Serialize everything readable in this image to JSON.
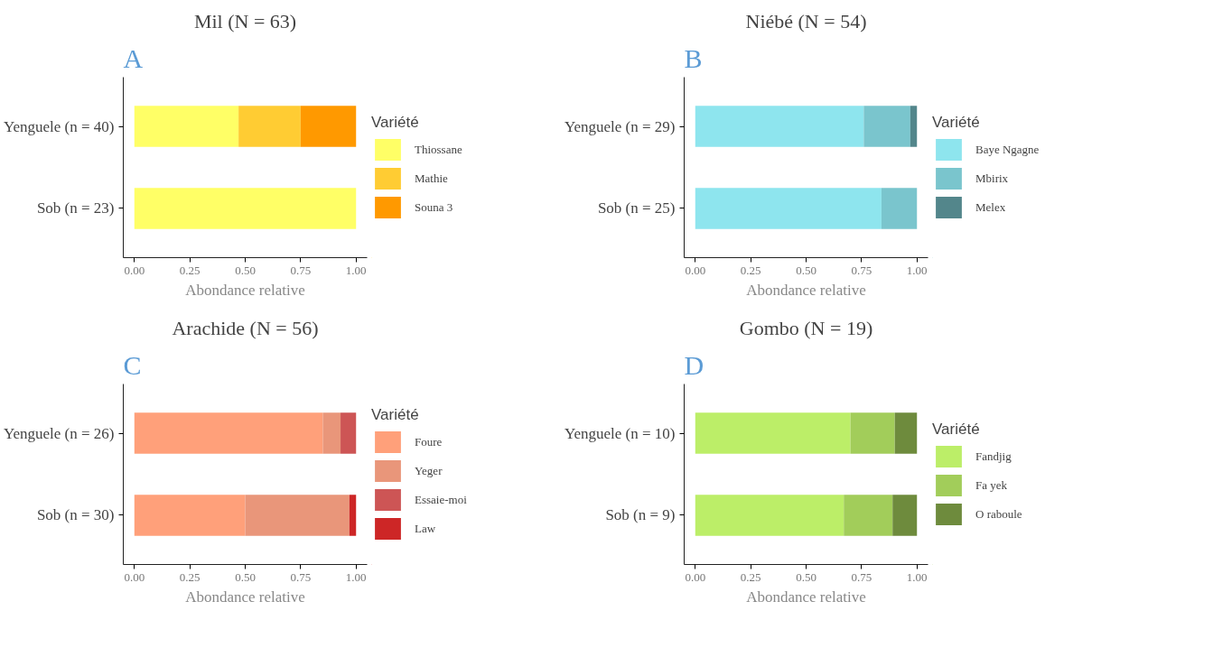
{
  "chart_data": [
    {
      "type": "bar",
      "orientation": "horizontal",
      "stacked": true,
      "title": "Mil (N = 63)",
      "annotations": [
        "A"
      ],
      "xlabel": "Abondance relative",
      "legend_title": "Variété",
      "legend": "right",
      "grid": false,
      "categories": [
        "Yenguele (n = 40)",
        "Sob (n = 23)"
      ],
      "xlim": [
        -0.05,
        1.05
      ],
      "xticks": [
        {
          "value": 0,
          "label": "0.00"
        },
        {
          "value": 0.25,
          "label": "0.25"
        },
        {
          "value": 0.5,
          "label": "0.50"
        },
        {
          "value": 0.75,
          "label": "0.75"
        },
        {
          "value": 1,
          "label": "1.00"
        }
      ],
      "series": [
        {
          "name": "Thiossane",
          "color": "#ffff66",
          "values": [
            0.47,
            1
          ]
        },
        {
          "name": "Mathie",
          "color": "#ffcc33",
          "values": [
            0.28,
            0
          ]
        },
        {
          "name": "Souna 3",
          "color": "#ff9900",
          "values": [
            0.25,
            0
          ]
        }
      ]
    },
    {
      "type": "bar",
      "orientation": "horizontal",
      "stacked": true,
      "title": "Niébé (N = 54)",
      "annotations": [
        "B"
      ],
      "xlabel": "Abondance relative",
      "legend_title": "Variété",
      "legend": "right",
      "grid": false,
      "categories": [
        "Yenguele (n = 29)",
        "Sob (n = 25)"
      ],
      "xlim": [
        -0.05,
        1.05
      ],
      "xticks": [
        {
          "value": 0,
          "label": "0.00"
        },
        {
          "value": 0.25,
          "label": "0.25"
        },
        {
          "value": 0.5,
          "label": "0.50"
        },
        {
          "value": 0.75,
          "label": "0.75"
        },
        {
          "value": 1,
          "label": "1.00"
        }
      ],
      "series": [
        {
          "name": "Baye Ngagne",
          "color": "#8ee5ee",
          "values": [
            0.76,
            0.84
          ]
        },
        {
          "name": "Mbirix",
          "color": "#7ac5cd",
          "values": [
            0.21,
            0.16
          ]
        },
        {
          "name": "Melex",
          "color": "#53868b",
          "values": [
            0.03,
            0
          ]
        }
      ]
    },
    {
      "type": "bar",
      "orientation": "horizontal",
      "stacked": true,
      "title": "Arachide (N = 56)",
      "annotations": [
        "C"
      ],
      "xlabel": "Abondance relative",
      "legend_title": "Variété",
      "legend": "right",
      "grid": false,
      "categories": [
        "Yenguele (n = 26)",
        "Sob (n = 30)"
      ],
      "xlim": [
        -0.05,
        1.05
      ],
      "xticks": [
        {
          "value": 0,
          "label": "0.00"
        },
        {
          "value": 0.25,
          "label": "0.25"
        },
        {
          "value": 0.5,
          "label": "0.50"
        },
        {
          "value": 0.75,
          "label": "0.75"
        },
        {
          "value": 1,
          "label": "1.00"
        }
      ],
      "series": [
        {
          "name": "Foure",
          "color": "#ffa07a",
          "values": [
            0.85,
            0.5
          ]
        },
        {
          "name": "Yeger",
          "color": "#e9967a",
          "values": [
            0.08,
            0.47
          ]
        },
        {
          "name": "Essaie-moi",
          "color": "#cd5555",
          "values": [
            0.07,
            0
          ]
        },
        {
          "name": "Law",
          "color": "#cd2626",
          "values": [
            0,
            0.03
          ]
        }
      ]
    },
    {
      "type": "bar",
      "orientation": "horizontal",
      "stacked": true,
      "title": "Gombo (N = 19)",
      "annotations": [
        "D"
      ],
      "xlabel": "Abondance relative",
      "legend_title": "Variété",
      "legend": "right",
      "grid": false,
      "categories": [
        "Yenguele (n = 10)",
        "Sob (n = 9)"
      ],
      "xlim": [
        -0.05,
        1.05
      ],
      "xticks": [
        {
          "value": 0,
          "label": "0.00"
        },
        {
          "value": 0.25,
          "label": "0.25"
        },
        {
          "value": 0.5,
          "label": "0.50"
        },
        {
          "value": 0.75,
          "label": "0.75"
        },
        {
          "value": 1,
          "label": "1.00"
        }
      ],
      "series": [
        {
          "name": "Fandjig",
          "color": "#bcee68",
          "values": [
            0.7,
            0.67
          ]
        },
        {
          "name": "Fa yek",
          "color": "#a2cd5a",
          "values": [
            0.2,
            0.22
          ]
        },
        {
          "name": "O raboule",
          "color": "#6e8b3d",
          "values": [
            0.1,
            0.11
          ]
        }
      ]
    }
  ]
}
